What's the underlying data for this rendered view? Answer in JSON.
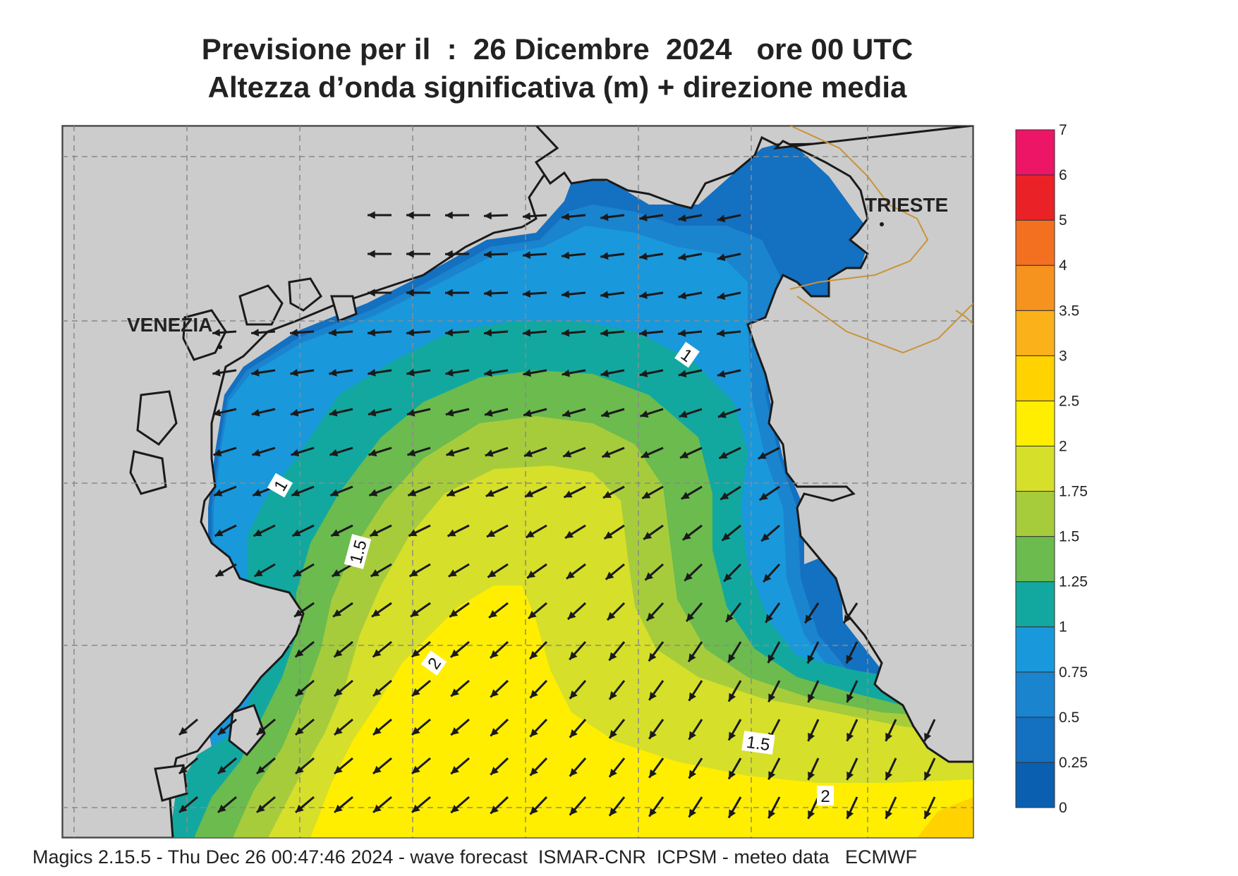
{
  "title": {
    "line1": "Previsione per il  :  26 Dicembre  2024   ore 00 UTC",
    "line2": "Altezza d’onda significativa (m) + direzione media"
  },
  "cities": [
    {
      "name": "VENEZIA"
    },
    {
      "name": "TRIESTE"
    }
  ],
  "contour_labels": [
    "1",
    "1",
    "1.5",
    "2",
    "1.5",
    "2"
  ],
  "legend": {
    "items": [
      {
        "label": "0",
        "color": "#0b5fb0"
      },
      {
        "label": "0.25",
        "color": "#1470c0"
      },
      {
        "label": "0.5",
        "color": "#1a84cf"
      },
      {
        "label": "0.75",
        "color": "#1a98dc"
      },
      {
        "label": "1",
        "color": "#12a89f"
      },
      {
        "label": "1.25",
        "color": "#6bbb4e"
      },
      {
        "label": "1.5",
        "color": "#a6cc3c"
      },
      {
        "label": "1.75",
        "color": "#d6df2a"
      },
      {
        "label": "2",
        "color": "#ffee00"
      },
      {
        "label": "2.5",
        "color": "#ffd200"
      },
      {
        "label": "3",
        "color": "#fbb21a"
      },
      {
        "label": "3.5",
        "color": "#f6921e"
      },
      {
        "label": "4",
        "color": "#f37021"
      },
      {
        "label": "5",
        "color": "#ea2227"
      },
      {
        "label": "6",
        "color": "#ec1566"
      },
      {
        "label": "7",
        "color": ""
      }
    ]
  },
  "footer": "Magics 2.15.5 - Thu Dec 26 00:47:46 2024 - wave forecast  ISMAR-CNR  ICPSM - meteo data   ECMWF",
  "colors": {
    "land": "#cccccc",
    "coast": "#1a1a1a",
    "border": "#c9943a",
    "arrow": "#1a1a1a",
    "grid": "#8a8a8a"
  }
}
